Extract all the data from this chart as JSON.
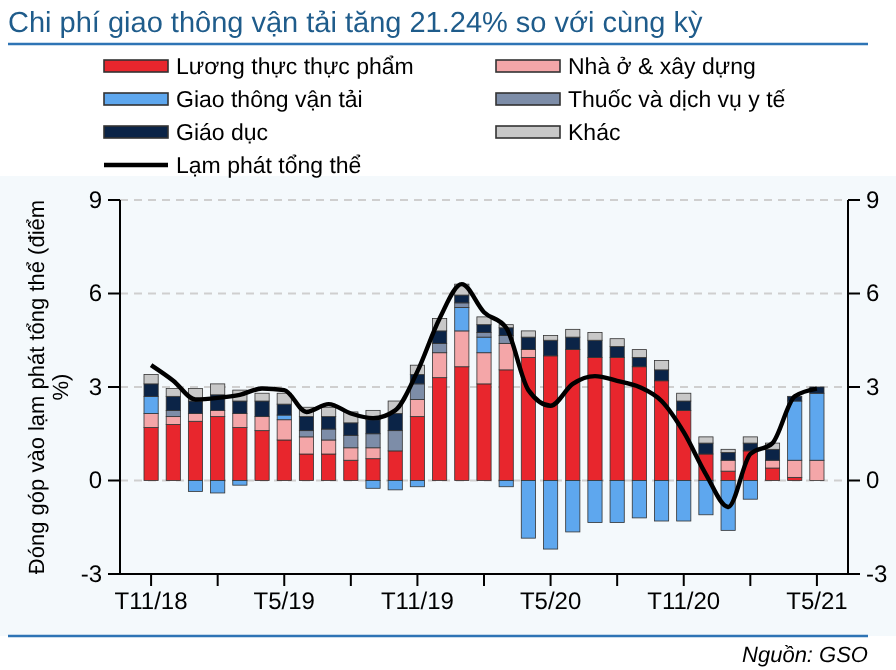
{
  "chart_data": {
    "type": "bar",
    "title": "Chi phí giao thông vận tải tăng 21.24% so với cùng kỳ",
    "ylabel": "Đóng góp vào lạm phát tổng thể (điểm %)",
    "annotations": [
      "Nguồn: GSO"
    ],
    "categories": [
      "T11/18",
      null,
      null,
      null,
      null,
      null,
      "T5/19",
      null,
      null,
      null,
      null,
      null,
      "T11/19",
      null,
      null,
      null,
      null,
      null,
      "T5/20",
      null,
      null,
      null,
      null,
      null,
      "T11/20",
      null,
      null,
      null,
      null,
      null,
      "T5/21"
    ],
    "stacked": true,
    "ylim": [
      -3,
      9
    ],
    "yticks": [
      -3,
      0,
      3,
      6,
      9
    ],
    "y2lim": [
      -3,
      9
    ],
    "y2ticks": [
      -3,
      0,
      3,
      6,
      9
    ],
    "grid": "y",
    "legend": "top",
    "series": [
      {
        "name": "Lương thực thực phẩm",
        "color": "#e8262d",
        "values": [
          1.7,
          1.8,
          1.9,
          2.05,
          1.7,
          1.6,
          1.3,
          0.85,
          0.85,
          0.65,
          0.7,
          0.95,
          2.05,
          3.3,
          3.65,
          3.1,
          3.55,
          3.95,
          4.0,
          4.2,
          3.95,
          3.95,
          3.65,
          3.2,
          2.25,
          0.85,
          0.3,
          0.95,
          0.4,
          0.1,
          0
        ]
      },
      {
        "name": "Nhà ở & xây dựng",
        "color": "#f4a6a8",
        "values": [
          0.45,
          0.25,
          0.25,
          0.2,
          0.45,
          0.45,
          0.65,
          0.55,
          0.45,
          0.4,
          0.35,
          0,
          0.55,
          0.8,
          1.15,
          1.0,
          0.85,
          0.25,
          0,
          0,
          0,
          0,
          0,
          0,
          0,
          0,
          0.35,
          0,
          0.25,
          0.55,
          0.65
        ]
      },
      {
        "name": "Giao thông vận tải",
        "color": "#5ea7ee",
        "values": [
          0.55,
          0,
          -0.35,
          -0.4,
          -0.15,
          0,
          0.15,
          0,
          0,
          0,
          -0.25,
          -0.3,
          -0.2,
          0,
          0.75,
          0.5,
          -0.2,
          -1.85,
          -2.2,
          -1.65,
          -1.35,
          -1.35,
          -1.2,
          -1.3,
          -1.3,
          -1.1,
          -1.6,
          -0.6,
          0,
          1.9,
          2.15
        ]
      },
      {
        "name": "Thuốc và dịch vụ y tế",
        "color": "#7d8da8",
        "values": [
          0,
          0.2,
          0,
          0,
          0,
          0,
          0,
          0.2,
          0.35,
          0.4,
          0.45,
          0.65,
          0.5,
          0.3,
          0.15,
          0.15,
          0.25,
          0,
          0,
          0,
          0,
          0,
          0,
          0,
          0,
          0,
          0,
          0,
          0,
          0,
          0
        ]
      },
      {
        "name": "Giáo dục",
        "color": "#0b2447",
        "values": [
          0.4,
          0.45,
          0.4,
          0.5,
          0.4,
          0.5,
          0.35,
          0.45,
          0.4,
          0.4,
          0.45,
          0.55,
          0.3,
          0.4,
          0.25,
          0.25,
          0.25,
          0.4,
          0.5,
          0.4,
          0.55,
          0.35,
          0.3,
          0.35,
          0.3,
          0.35,
          0.25,
          0.25,
          0.35,
          0.15,
          0.2
        ]
      },
      {
        "name": "Khác",
        "color": "#c8c8c8",
        "values": [
          0.3,
          0.25,
          0.4,
          0.35,
          0.35,
          0.25,
          0.35,
          0.3,
          0.3,
          0.35,
          0.3,
          0.4,
          0.3,
          0.4,
          0.35,
          0.25,
          0.1,
          0.2,
          0.15,
          0.25,
          0.25,
          0.25,
          0.25,
          0.3,
          0.25,
          0.2,
          0.1,
          0.2,
          0.2,
          0,
          0
        ]
      },
      {
        "name": "Lạm phát tổng thể",
        "type": "line",
        "color": "#000000",
        "values": [
          3.7,
          3.2,
          2.6,
          2.65,
          2.75,
          2.95,
          2.9,
          2.2,
          2.45,
          2.15,
          2.0,
          2.25,
          3.5,
          5.2,
          6.3,
          5.4,
          4.9,
          2.9,
          2.4,
          3.1,
          3.35,
          3.2,
          3.0,
          2.55,
          1.55,
          0.2,
          -0.85,
          0.85,
          1.2,
          2.7,
          2.95
        ]
      }
    ]
  }
}
